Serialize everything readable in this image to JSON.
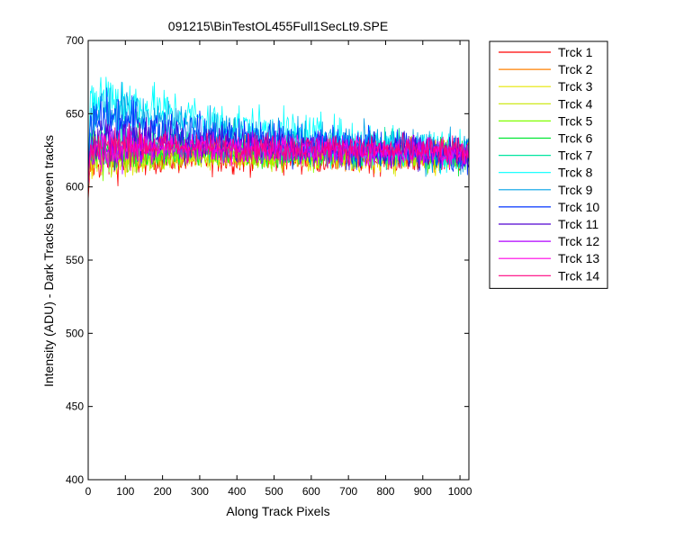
{
  "chart_data": {
    "type": "line",
    "title": "091215\\BinTestOL455Full1SecLt9.SPE",
    "xlabel": "Along Track Pixels",
    "ylabel": "Intensity (ADU) - Dark Tracks between tracks",
    "xlim": [
      0,
      1024
    ],
    "ylim": [
      400,
      700
    ],
    "x_ticks": [
      0,
      100,
      200,
      300,
      400,
      500,
      600,
      700,
      800,
      900,
      1000
    ],
    "y_ticks": [
      400,
      450,
      500,
      550,
      600,
      650,
      700
    ],
    "grid": false,
    "legend_position": "outside-right",
    "series": [
      {
        "name": "Trck 1",
        "color": "#ff0000",
        "x": [
          0,
          5,
          25,
          50,
          100,
          200,
          300,
          400,
          500,
          600,
          700,
          800,
          900,
          1024
        ],
        "y": [
          590,
          614,
          617,
          618,
          618,
          619,
          619,
          619,
          619,
          619,
          619,
          619,
          619,
          619
        ],
        "noise": 5
      },
      {
        "name": "Trck 2",
        "color": "#ff8000",
        "x": [
          0,
          5,
          25,
          50,
          100,
          200,
          300,
          400,
          500,
          600,
          700,
          800,
          900,
          1024
        ],
        "y": [
          600,
          618,
          621,
          622,
          622,
          623,
          623,
          623,
          623,
          622,
          622,
          622,
          622,
          622
        ],
        "noise": 5
      },
      {
        "name": "Trck 3",
        "color": "#e6e600",
        "x": [
          0,
          5,
          25,
          50,
          100,
          200,
          300,
          400,
          500,
          600,
          700,
          800,
          900,
          1024
        ],
        "y": [
          600,
          617,
          620,
          620,
          620,
          621,
          621,
          621,
          621,
          620,
          620,
          620,
          620,
          620
        ],
        "noise": 5
      },
      {
        "name": "Trck 4",
        "color": "#c8e600",
        "x": [
          0,
          5,
          25,
          50,
          100,
          200,
          300,
          400,
          500,
          600,
          700,
          800,
          900,
          1024
        ],
        "y": [
          600,
          618,
          621,
          621,
          621,
          622,
          622,
          622,
          622,
          621,
          621,
          621,
          621,
          621
        ],
        "noise": 5
      },
      {
        "name": "Trck 5",
        "color": "#80ff00",
        "x": [
          0,
          5,
          25,
          50,
          100,
          200,
          300,
          400,
          500,
          600,
          700,
          800,
          900,
          1024
        ],
        "y": [
          600,
          619,
          622,
          622,
          622,
          623,
          623,
          623,
          622,
          622,
          622,
          622,
          622,
          622
        ],
        "noise": 5
      },
      {
        "name": "Trck 6",
        "color": "#00e633",
        "x": [
          0,
          5,
          25,
          50,
          100,
          200,
          300,
          400,
          500,
          600,
          700,
          800,
          900,
          1024
        ],
        "y": [
          600,
          620,
          623,
          623,
          623,
          624,
          624,
          623,
          623,
          623,
          623,
          623,
          622,
          622
        ],
        "noise": 5
      },
      {
        "name": "Trck 7",
        "color": "#00e6a0",
        "x": [
          0,
          5,
          25,
          50,
          100,
          200,
          300,
          400,
          500,
          600,
          700,
          800,
          900,
          1024
        ],
        "y": [
          605,
          625,
          630,
          632,
          632,
          631,
          630,
          629,
          628,
          627,
          626,
          625,
          624,
          623
        ],
        "noise": 6
      },
      {
        "name": "Trck 8",
        "color": "#00ffff",
        "x": [
          0,
          5,
          25,
          50,
          100,
          200,
          300,
          400,
          500,
          600,
          700,
          800,
          900,
          1024
        ],
        "y": [
          610,
          650,
          660,
          662,
          658,
          652,
          646,
          641,
          637,
          634,
          631,
          629,
          627,
          624
        ],
        "noise": 8
      },
      {
        "name": "Trck 9",
        "color": "#00a0e6",
        "x": [
          0,
          5,
          25,
          50,
          100,
          200,
          300,
          400,
          500,
          600,
          700,
          800,
          900,
          1024
        ],
        "y": [
          610,
          645,
          652,
          654,
          650,
          645,
          640,
          637,
          634,
          631,
          629,
          627,
          625,
          623
        ],
        "noise": 7
      },
      {
        "name": "Trck 10",
        "color": "#0033ff",
        "x": [
          0,
          5,
          25,
          50,
          100,
          200,
          300,
          400,
          500,
          600,
          700,
          800,
          900,
          1024
        ],
        "y": [
          610,
          640,
          645,
          646,
          643,
          639,
          636,
          633,
          631,
          629,
          627,
          626,
          624,
          622
        ],
        "noise": 7
      },
      {
        "name": "Trck 11",
        "color": "#5000d0",
        "x": [
          0,
          5,
          25,
          50,
          100,
          200,
          300,
          400,
          500,
          600,
          700,
          800,
          900,
          1024
        ],
        "y": [
          605,
          630,
          633,
          633,
          632,
          631,
          630,
          629,
          628,
          627,
          626,
          625,
          624,
          623
        ],
        "noise": 6
      },
      {
        "name": "Trck 12",
        "color": "#b000ff",
        "x": [
          0,
          5,
          25,
          50,
          100,
          200,
          300,
          400,
          500,
          600,
          700,
          800,
          900,
          1024
        ],
        "y": [
          600,
          623,
          626,
          626,
          626,
          626,
          626,
          625,
          625,
          625,
          624,
          624,
          624,
          623
        ],
        "noise": 5
      },
      {
        "name": "Trck 13",
        "color": "#ff00e6",
        "x": [
          0,
          5,
          25,
          50,
          100,
          200,
          300,
          400,
          500,
          600,
          700,
          800,
          900,
          1024
        ],
        "y": [
          600,
          624,
          627,
          627,
          627,
          627,
          627,
          626,
          626,
          626,
          625,
          625,
          624,
          623
        ],
        "noise": 5
      },
      {
        "name": "Trck 14",
        "color": "#ff0080",
        "x": [
          0,
          5,
          25,
          50,
          100,
          200,
          300,
          400,
          500,
          600,
          700,
          800,
          900,
          1024
        ],
        "y": [
          600,
          625,
          628,
          628,
          628,
          628,
          627,
          627,
          627,
          626,
          626,
          625,
          625,
          624
        ],
        "noise": 5
      }
    ]
  }
}
